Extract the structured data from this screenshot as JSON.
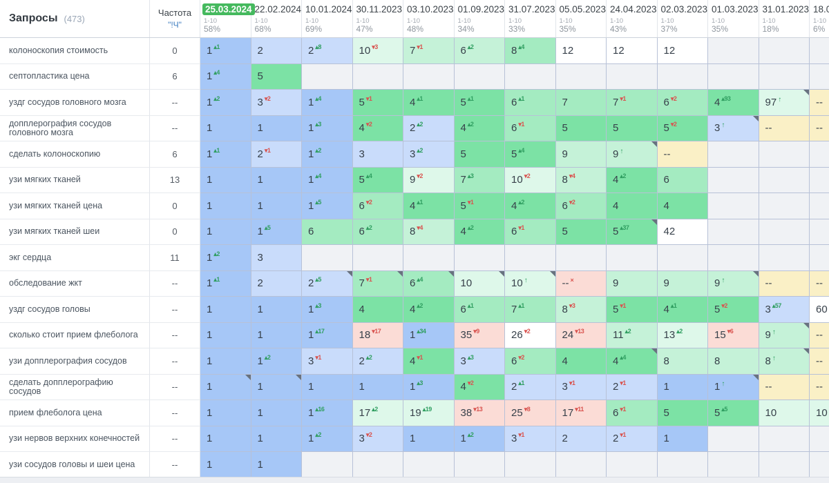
{
  "header": {
    "title": "Запросы",
    "count": "(473)",
    "freq_label": "Частота",
    "freq_sub": "\"!Ч\"",
    "range_label": "1-10",
    "columns": [
      {
        "date": "25.03.2024",
        "pct": "58%",
        "selected": true
      },
      {
        "date": "22.02.2024",
        "pct": "68%"
      },
      {
        "date": "10.01.2024",
        "pct": "69%"
      },
      {
        "date": "30.11.2023",
        "pct": "47%"
      },
      {
        "date": "03.10.2023",
        "pct": "48%"
      },
      {
        "date": "01.09.2023",
        "pct": "34%"
      },
      {
        "date": "31.07.2023",
        "pct": "33%"
      },
      {
        "date": "05.05.2023",
        "pct": "35%"
      },
      {
        "date": "24.04.2023",
        "pct": "43%"
      },
      {
        "date": "02.03.2023",
        "pct": "37%"
      },
      {
        "date": "01.03.2023",
        "pct": "35%"
      },
      {
        "date": "31.01.2023",
        "pct": "18%"
      },
      {
        "date": "18.0",
        "pct": "6%"
      }
    ]
  },
  "colors": {
    "selected_chip": "#45b95e",
    "accent_blue": "#3f7dc0",
    "delta_up": "#2f9e60",
    "delta_down": "#d9534f",
    "cell_bg": {
      "b1": "#a6c7f7",
      "b2": "#c9dcfb",
      "g1": "#7ce2a5",
      "g2": "#a4ebc1",
      "g3": "#c5f2d8",
      "g4": "#def8ea",
      "w": "#ffffff",
      "y": "#faf0c6",
      "p": "#fbdcd6",
      "e": "#f0f2f5"
    }
  },
  "rows": [
    {
      "query": "колоноскопия стоимость",
      "freq": "0",
      "cells": [
        {
          "v": "1",
          "d": "+1",
          "bg": "b1"
        },
        {
          "v": "2",
          "bg": "b2"
        },
        {
          "v": "2",
          "d": "+8",
          "bg": "b2"
        },
        {
          "v": "10",
          "d": "-3",
          "bg": "g4"
        },
        {
          "v": "7",
          "d": "-1",
          "bg": "g3"
        },
        {
          "v": "6",
          "d": "+2",
          "bg": "g3"
        },
        {
          "v": "8",
          "d": "+4",
          "bg": "g2"
        },
        {
          "v": "12",
          "bg": "w"
        },
        {
          "v": "12",
          "bg": "w"
        },
        {
          "v": "12",
          "bg": "w"
        },
        {
          "bg": "e"
        },
        {
          "bg": "e"
        },
        {
          "bg": "e"
        }
      ]
    },
    {
      "query": "септопластика цена",
      "freq": "6",
      "cells": [
        {
          "v": "1",
          "d": "+4",
          "bg": "b1"
        },
        {
          "v": "5",
          "bg": "g1"
        },
        {
          "bg": "e"
        },
        {
          "bg": "e"
        },
        {
          "bg": "e"
        },
        {
          "bg": "e"
        },
        {
          "bg": "e"
        },
        {
          "bg": "e"
        },
        {
          "bg": "e"
        },
        {
          "bg": "e"
        },
        {
          "bg": "e"
        },
        {
          "bg": "e"
        },
        {
          "bg": "e"
        }
      ]
    },
    {
      "query": "уздг сосудов головного мозга",
      "freq": "--",
      "cells": [
        {
          "v": "1",
          "d": "+2",
          "bg": "b1"
        },
        {
          "v": "3",
          "d": "-2",
          "bg": "b2"
        },
        {
          "v": "1",
          "d": "+4",
          "bg": "b1"
        },
        {
          "v": "5",
          "d": "-1",
          "bg": "g1"
        },
        {
          "v": "4",
          "d": "+1",
          "bg": "g1"
        },
        {
          "v": "5",
          "d": "+1",
          "bg": "g1"
        },
        {
          "v": "6",
          "d": "+1",
          "bg": "g2"
        },
        {
          "v": "7",
          "bg": "g2"
        },
        {
          "v": "7",
          "d": "-1",
          "bg": "g2"
        },
        {
          "v": "6",
          "d": "-2",
          "bg": "g2"
        },
        {
          "v": "4",
          "d": "+93",
          "bg": "g1"
        },
        {
          "v": "97",
          "d": "up",
          "bg": "g4",
          "n": true
        },
        {
          "v": "--",
          "bg": "y"
        }
      ]
    },
    {
      "query": "допплерография сосудов головного мозга",
      "freq": "--",
      "cells": [
        {
          "v": "1",
          "bg": "b1"
        },
        {
          "v": "1",
          "bg": "b1"
        },
        {
          "v": "1",
          "d": "+3",
          "bg": "b1"
        },
        {
          "v": "4",
          "d": "-2",
          "bg": "g1"
        },
        {
          "v": "2",
          "d": "+2",
          "bg": "b2"
        },
        {
          "v": "4",
          "d": "+2",
          "bg": "g1"
        },
        {
          "v": "6",
          "d": "-1",
          "bg": "g2"
        },
        {
          "v": "5",
          "bg": "g1"
        },
        {
          "v": "5",
          "bg": "g1"
        },
        {
          "v": "5",
          "d": "-2",
          "bg": "g1"
        },
        {
          "v": "3",
          "d": "up",
          "bg": "b2",
          "n": true
        },
        {
          "v": "--",
          "bg": "y"
        },
        {
          "v": "--",
          "bg": "y"
        }
      ]
    },
    {
      "query": "сделать колоноскопию",
      "freq": "6",
      "cells": [
        {
          "v": "1",
          "d": "+1",
          "bg": "b1"
        },
        {
          "v": "2",
          "d": "-1",
          "bg": "b2"
        },
        {
          "v": "1",
          "d": "+2",
          "bg": "b1"
        },
        {
          "v": "3",
          "bg": "b2"
        },
        {
          "v": "3",
          "d": "+2",
          "bg": "b2"
        },
        {
          "v": "5",
          "bg": "g1"
        },
        {
          "v": "5",
          "d": "+4",
          "bg": "g1"
        },
        {
          "v": "9",
          "bg": "g3"
        },
        {
          "v": "9",
          "d": "up",
          "bg": "g3",
          "n": true
        },
        {
          "v": "--",
          "bg": "y"
        },
        {
          "bg": "e"
        },
        {
          "bg": "e"
        },
        {
          "bg": "e"
        }
      ]
    },
    {
      "query": "узи мягких тканей",
      "freq": "13",
      "cells": [
        {
          "v": "1",
          "bg": "b1"
        },
        {
          "v": "1",
          "bg": "b1"
        },
        {
          "v": "1",
          "d": "+4",
          "bg": "b1"
        },
        {
          "v": "5",
          "d": "+4",
          "bg": "g1"
        },
        {
          "v": "9",
          "d": "-2",
          "bg": "g4"
        },
        {
          "v": "7",
          "d": "+3",
          "bg": "g2"
        },
        {
          "v": "10",
          "d": "-2",
          "bg": "g4"
        },
        {
          "v": "8",
          "d": "-4",
          "bg": "g3"
        },
        {
          "v": "4",
          "d": "+2",
          "bg": "g1"
        },
        {
          "v": "6",
          "bg": "g2"
        },
        {
          "bg": "e"
        },
        {
          "bg": "e"
        },
        {
          "bg": "e"
        }
      ]
    },
    {
      "query": "узи мягких тканей цена",
      "freq": "0",
      "cells": [
        {
          "v": "1",
          "bg": "b1"
        },
        {
          "v": "1",
          "bg": "b1"
        },
        {
          "v": "1",
          "d": "+5",
          "bg": "b1"
        },
        {
          "v": "6",
          "d": "-2",
          "bg": "g2"
        },
        {
          "v": "4",
          "d": "+1",
          "bg": "g1"
        },
        {
          "v": "5",
          "d": "-1",
          "bg": "g1"
        },
        {
          "v": "4",
          "d": "+2",
          "bg": "g1"
        },
        {
          "v": "6",
          "d": "-2",
          "bg": "g2"
        },
        {
          "v": "4",
          "bg": "g1"
        },
        {
          "v": "4",
          "bg": "g1"
        },
        {
          "bg": "e"
        },
        {
          "bg": "e"
        },
        {
          "bg": "e"
        }
      ]
    },
    {
      "query": "узи мягких тканей шеи",
      "freq": "0",
      "cells": [
        {
          "v": "1",
          "bg": "b1"
        },
        {
          "v": "1",
          "d": "+5",
          "bg": "b1"
        },
        {
          "v": "6",
          "bg": "g2"
        },
        {
          "v": "6",
          "d": "+2",
          "bg": "g2"
        },
        {
          "v": "8",
          "d": "-4",
          "bg": "g3"
        },
        {
          "v": "4",
          "d": "+2",
          "bg": "g1"
        },
        {
          "v": "6",
          "d": "-1",
          "bg": "g2"
        },
        {
          "v": "5",
          "bg": "g1"
        },
        {
          "v": "5",
          "d": "+37",
          "bg": "g1",
          "n": true
        },
        {
          "v": "42",
          "bg": "w"
        },
        {
          "bg": "e"
        },
        {
          "bg": "e"
        },
        {
          "bg": "e"
        }
      ]
    },
    {
      "query": "экг сердца",
      "freq": "11",
      "cells": [
        {
          "v": "1",
          "d": "+2",
          "bg": "b1"
        },
        {
          "v": "3",
          "bg": "b2"
        },
        {
          "bg": "e"
        },
        {
          "bg": "e"
        },
        {
          "bg": "e"
        },
        {
          "bg": "e"
        },
        {
          "bg": "e"
        },
        {
          "bg": "e"
        },
        {
          "bg": "e"
        },
        {
          "bg": "e"
        },
        {
          "bg": "e"
        },
        {
          "bg": "e"
        },
        {
          "bg": "e"
        }
      ]
    },
    {
      "query": "обследование жкт",
      "freq": "--",
      "cells": [
        {
          "v": "1",
          "d": "+1",
          "bg": "b1"
        },
        {
          "v": "2",
          "bg": "b2"
        },
        {
          "v": "2",
          "d": "+5",
          "bg": "b2",
          "n": true
        },
        {
          "v": "7",
          "d": "-1",
          "bg": "g2",
          "n": true
        },
        {
          "v": "6",
          "d": "+4",
          "bg": "g2",
          "n": true
        },
        {
          "v": "10",
          "bg": "g4",
          "n": true
        },
        {
          "v": "10",
          "d": "up",
          "bg": "g4",
          "n": true
        },
        {
          "v": "--",
          "d": "x",
          "bg": "p"
        },
        {
          "v": "9",
          "bg": "g3"
        },
        {
          "v": "9",
          "bg": "g3"
        },
        {
          "v": "9",
          "d": "up",
          "bg": "g3",
          "n": true
        },
        {
          "v": "--",
          "bg": "y"
        },
        {
          "v": "--",
          "bg": "y"
        }
      ]
    },
    {
      "query": "уздг сосудов головы",
      "freq": "--",
      "cells": [
        {
          "v": "1",
          "bg": "b1"
        },
        {
          "v": "1",
          "bg": "b1"
        },
        {
          "v": "1",
          "d": "+3",
          "bg": "b1"
        },
        {
          "v": "4",
          "bg": "g1"
        },
        {
          "v": "4",
          "d": "+2",
          "bg": "g1"
        },
        {
          "v": "6",
          "d": "+1",
          "bg": "g2"
        },
        {
          "v": "7",
          "d": "+1",
          "bg": "g2"
        },
        {
          "v": "8",
          "d": "-3",
          "bg": "g3"
        },
        {
          "v": "5",
          "d": "-1",
          "bg": "g1"
        },
        {
          "v": "4",
          "d": "+1",
          "bg": "g1"
        },
        {
          "v": "5",
          "d": "-2",
          "bg": "g1"
        },
        {
          "v": "3",
          "d": "+57",
          "bg": "b2"
        },
        {
          "v": "60",
          "bg": "w"
        }
      ]
    },
    {
      "query": "сколько стоит прием флеболога",
      "freq": "--",
      "cells": [
        {
          "v": "1",
          "bg": "b1"
        },
        {
          "v": "1",
          "bg": "b1"
        },
        {
          "v": "1",
          "d": "+17",
          "bg": "b1"
        },
        {
          "v": "18",
          "d": "-17",
          "bg": "p"
        },
        {
          "v": "1",
          "d": "+34",
          "bg": "b1"
        },
        {
          "v": "35",
          "d": "-9",
          "bg": "p"
        },
        {
          "v": "26",
          "d": "-2",
          "bg": "w"
        },
        {
          "v": "24",
          "d": "-13",
          "bg": "p"
        },
        {
          "v": "11",
          "d": "+2",
          "bg": "g3"
        },
        {
          "v": "13",
          "d": "+2",
          "bg": "g4"
        },
        {
          "v": "15",
          "d": "-6",
          "bg": "p"
        },
        {
          "v": "9",
          "d": "up",
          "bg": "g3",
          "n": true
        },
        {
          "v": "--",
          "bg": "y"
        }
      ]
    },
    {
      "query": "узи допплерография сосудов",
      "freq": "--",
      "cells": [
        {
          "v": "1",
          "bg": "b1"
        },
        {
          "v": "1",
          "d": "+2",
          "bg": "b1"
        },
        {
          "v": "3",
          "d": "-1",
          "bg": "b2"
        },
        {
          "v": "2",
          "d": "+2",
          "bg": "b2"
        },
        {
          "v": "4",
          "d": "-1",
          "bg": "g1"
        },
        {
          "v": "3",
          "d": "+3",
          "bg": "b2"
        },
        {
          "v": "6",
          "d": "-2",
          "bg": "g2"
        },
        {
          "v": "4",
          "bg": "g1"
        },
        {
          "v": "4",
          "d": "+4",
          "bg": "g1",
          "n": true
        },
        {
          "v": "8",
          "bg": "g3"
        },
        {
          "v": "8",
          "bg": "g3"
        },
        {
          "v": "8",
          "d": "up",
          "bg": "g3",
          "n": true
        },
        {
          "v": "--",
          "bg": "y"
        }
      ]
    },
    {
      "query": "сделать допплерографию сосудов",
      "freq": "--",
      "cells": [
        {
          "v": "1",
          "bg": "b1",
          "n": true
        },
        {
          "v": "1",
          "bg": "b1",
          "n": true
        },
        {
          "v": "1",
          "bg": "b1"
        },
        {
          "v": "1",
          "bg": "b1"
        },
        {
          "v": "1",
          "d": "+3",
          "bg": "b1"
        },
        {
          "v": "4",
          "d": "-2",
          "bg": "g1"
        },
        {
          "v": "2",
          "d": "+1",
          "bg": "b2"
        },
        {
          "v": "3",
          "d": "-1",
          "bg": "b2"
        },
        {
          "v": "2",
          "d": "-1",
          "bg": "b2"
        },
        {
          "v": "1",
          "bg": "b1"
        },
        {
          "v": "1",
          "d": "up",
          "bg": "b1",
          "n": true
        },
        {
          "v": "--",
          "bg": "y"
        },
        {
          "v": "--",
          "bg": "y"
        }
      ]
    },
    {
      "query": "прием флеболога цена",
      "freq": "--",
      "cells": [
        {
          "v": "1",
          "bg": "b1"
        },
        {
          "v": "1",
          "bg": "b1"
        },
        {
          "v": "1",
          "d": "+16",
          "bg": "b1"
        },
        {
          "v": "17",
          "d": "+2",
          "bg": "g4"
        },
        {
          "v": "19",
          "d": "+19",
          "bg": "g4"
        },
        {
          "v": "38",
          "d": "-13",
          "bg": "p"
        },
        {
          "v": "25",
          "d": "-8",
          "bg": "p"
        },
        {
          "v": "17",
          "d": "-11",
          "bg": "p"
        },
        {
          "v": "6",
          "d": "-1",
          "bg": "g2"
        },
        {
          "v": "5",
          "bg": "g1"
        },
        {
          "v": "5",
          "d": "+5",
          "bg": "g1"
        },
        {
          "v": "10",
          "bg": "g4"
        },
        {
          "v": "10",
          "bg": "g4"
        }
      ]
    },
    {
      "query": "узи нервов верхних конечностей",
      "freq": "--",
      "cells": [
        {
          "v": "1",
          "bg": "b1"
        },
        {
          "v": "1",
          "bg": "b1"
        },
        {
          "v": "1",
          "d": "+2",
          "bg": "b1"
        },
        {
          "v": "3",
          "d": "-2",
          "bg": "b2"
        },
        {
          "v": "1",
          "bg": "b1"
        },
        {
          "v": "1",
          "d": "+2",
          "bg": "b1"
        },
        {
          "v": "3",
          "d": "-1",
          "bg": "b2"
        },
        {
          "v": "2",
          "bg": "b2"
        },
        {
          "v": "2",
          "d": "-1",
          "bg": "b2"
        },
        {
          "v": "1",
          "bg": "b1"
        },
        {
          "bg": "e"
        },
        {
          "bg": "e"
        },
        {
          "bg": "e"
        }
      ]
    },
    {
      "query": "узи сосудов головы и шеи цена",
      "freq": "--",
      "cells": [
        {
          "v": "1",
          "bg": "b1"
        },
        {
          "v": "1",
          "bg": "b1"
        },
        {
          "bg": "e"
        },
        {
          "bg": "e"
        },
        {
          "bg": "e"
        },
        {
          "bg": "e"
        },
        {
          "bg": "e"
        },
        {
          "bg": "e"
        },
        {
          "bg": "e"
        },
        {
          "bg": "e"
        },
        {
          "bg": "e"
        },
        {
          "bg": "e"
        },
        {
          "bg": "e"
        }
      ]
    }
  ]
}
